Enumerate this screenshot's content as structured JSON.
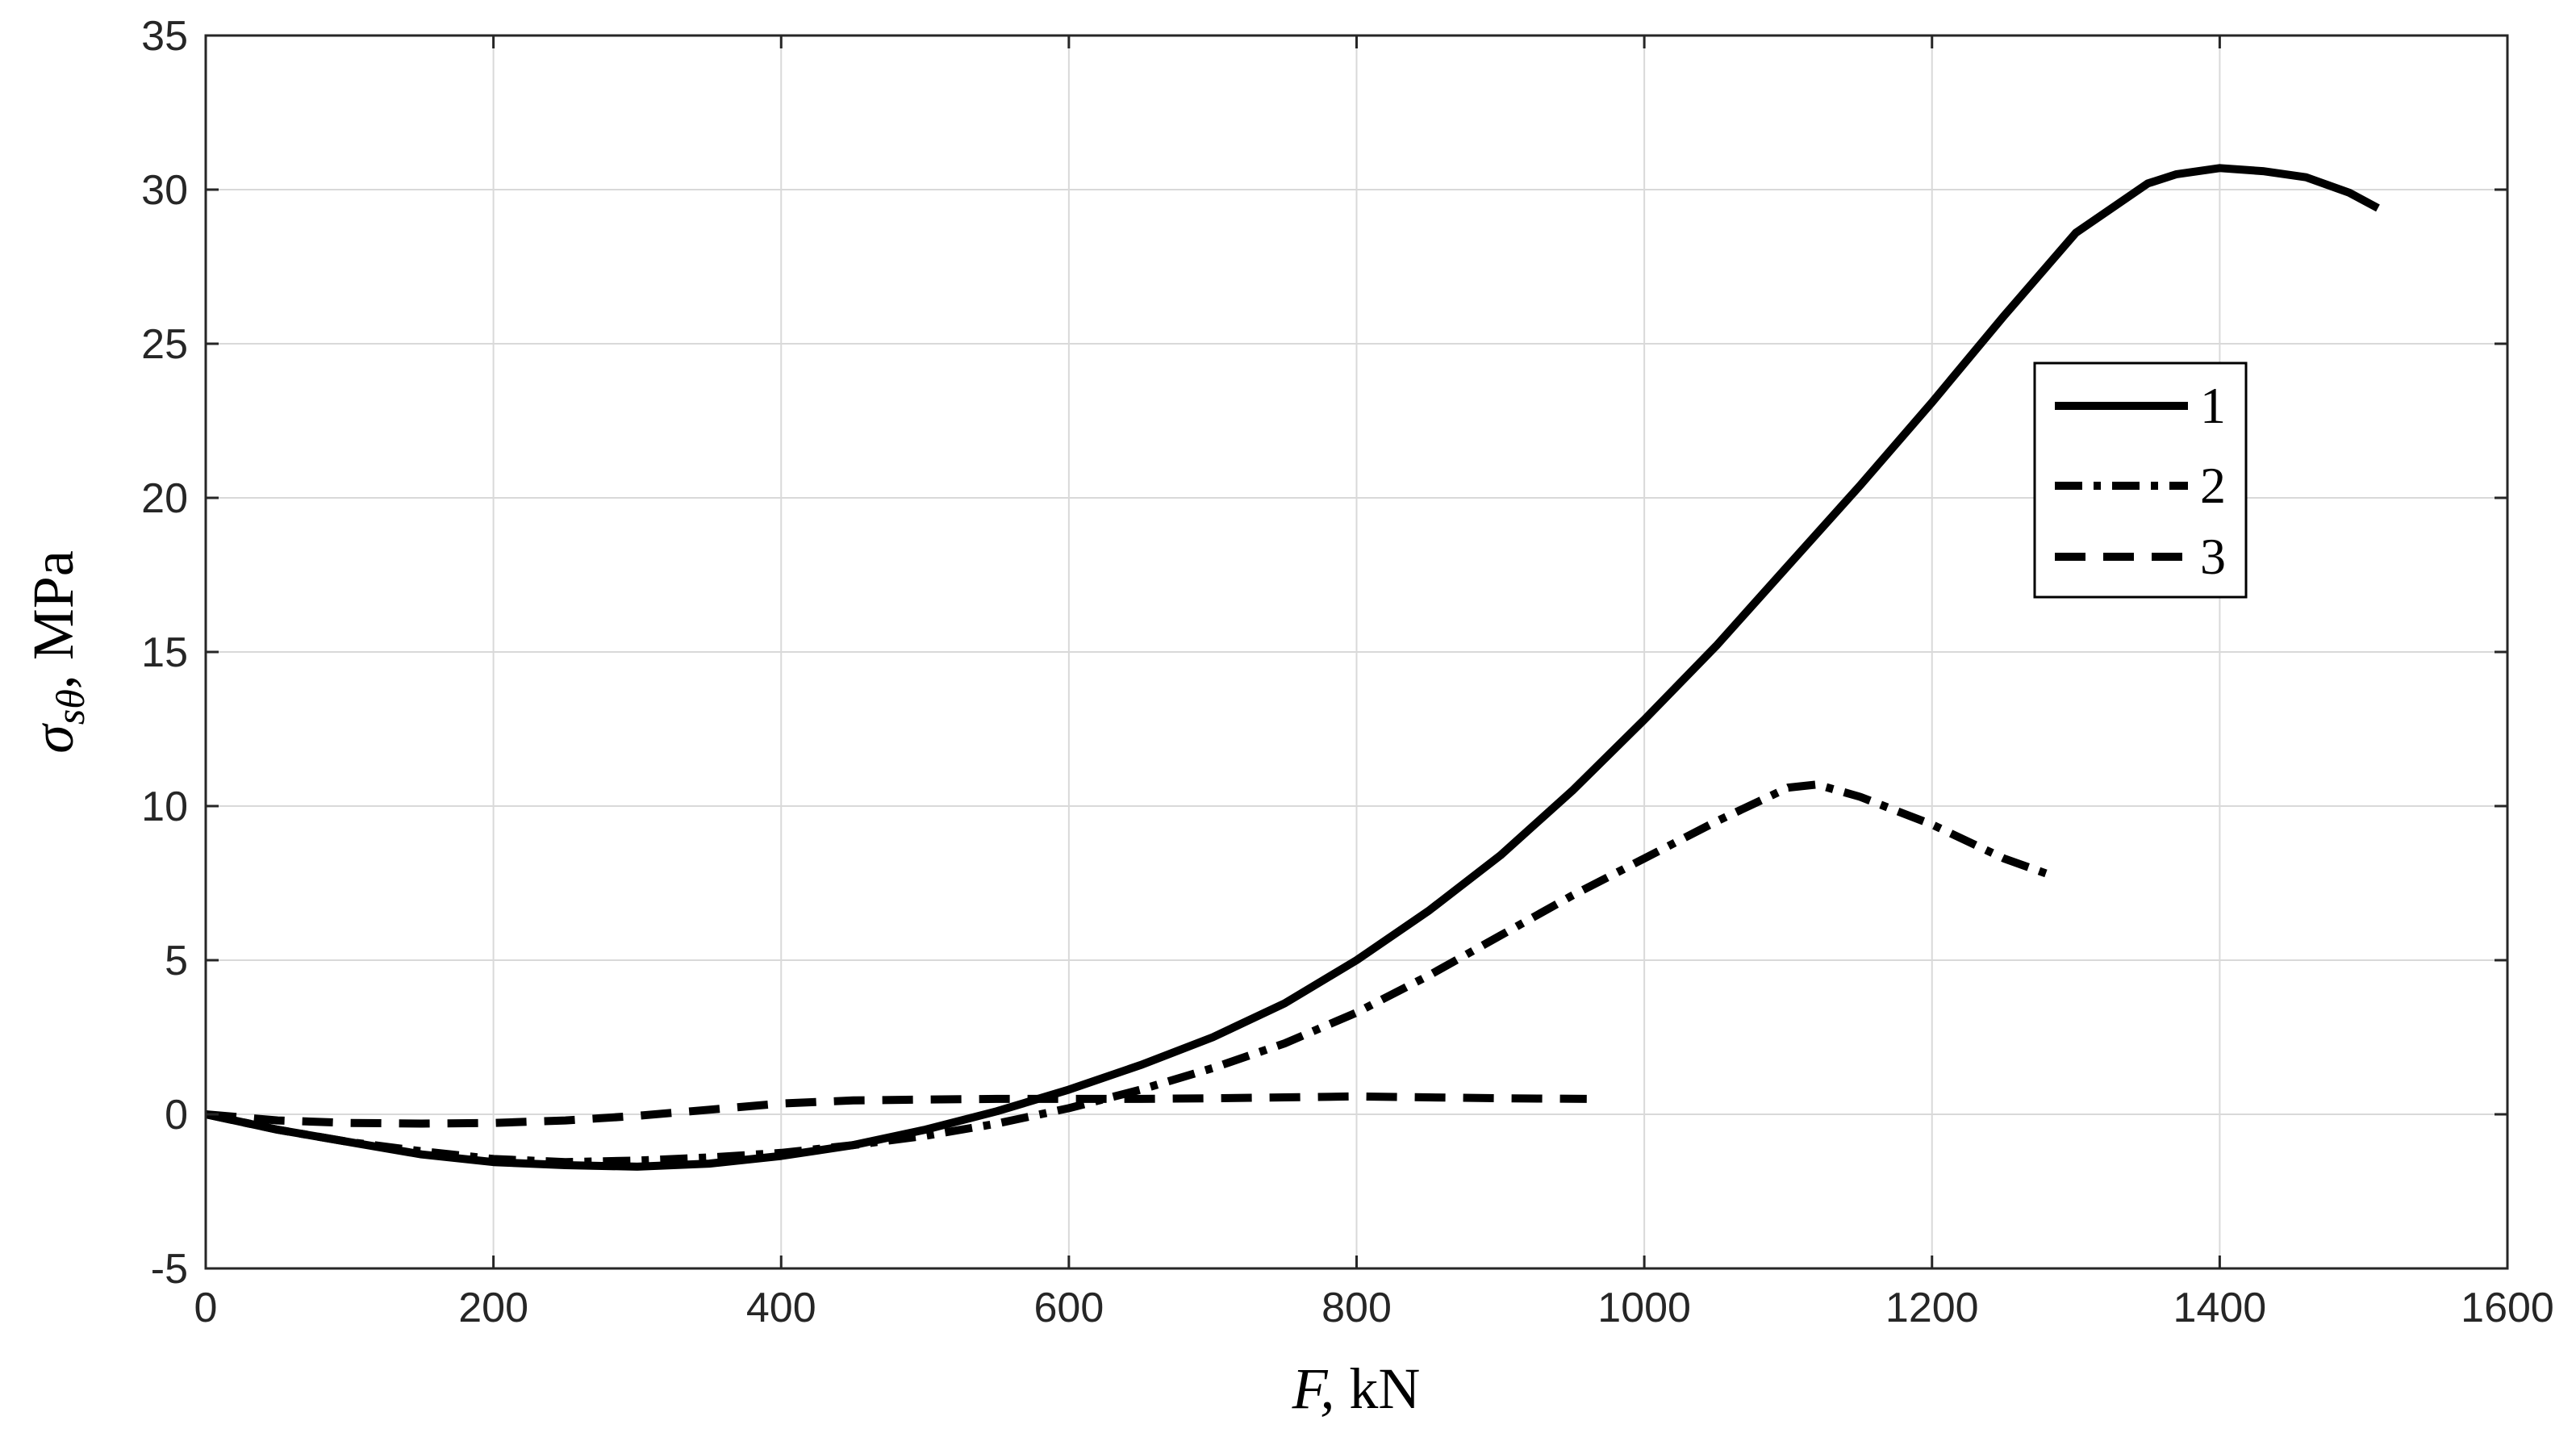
{
  "chart_data": {
    "type": "line",
    "xlabel_var": "F,",
    "xlabel_unit": " kN",
    "ylabel_var": "σ",
    "ylabel_sub": "sθ",
    "ylabel_unit": ", MPa",
    "xlim": [
      0,
      1600
    ],
    "ylim": [
      -5,
      35
    ],
    "xticks": [
      0,
      200,
      400,
      600,
      800,
      1000,
      1200,
      1400,
      1600
    ],
    "yticks": [
      -5,
      0,
      5,
      10,
      15,
      20,
      25,
      30,
      35
    ],
    "grid": true,
    "legend_position": "upper-right-inside",
    "series": [
      {
        "name": "1",
        "style": "solid",
        "x": [
          0,
          50,
          100,
          150,
          200,
          250,
          300,
          350,
          400,
          450,
          500,
          550,
          600,
          650,
          700,
          750,
          800,
          850,
          900,
          950,
          1000,
          1050,
          1100,
          1150,
          1200,
          1250,
          1300,
          1350,
          1370,
          1400,
          1430,
          1460,
          1490,
          1510
        ],
        "y": [
          0,
          -0.5,
          -0.9,
          -1.3,
          -1.55,
          -1.65,
          -1.7,
          -1.6,
          -1.35,
          -1.0,
          -0.5,
          0.1,
          0.8,
          1.6,
          2.5,
          3.6,
          5.0,
          6.6,
          8.4,
          10.5,
          12.8,
          15.2,
          17.8,
          20.4,
          23.1,
          25.9,
          28.6,
          30.2,
          30.5,
          30.7,
          30.6,
          30.4,
          29.9,
          29.4
        ]
      },
      {
        "name": "2",
        "style": "dashdot",
        "x": [
          0,
          50,
          100,
          150,
          200,
          250,
          300,
          350,
          400,
          450,
          500,
          550,
          600,
          650,
          700,
          750,
          800,
          850,
          900,
          950,
          1000,
          1050,
          1100,
          1120,
          1150,
          1200,
          1250,
          1280
        ],
        "y": [
          0,
          -0.5,
          -0.9,
          -1.2,
          -1.45,
          -1.55,
          -1.5,
          -1.4,
          -1.25,
          -1.0,
          -0.7,
          -0.3,
          0.2,
          0.8,
          1.5,
          2.3,
          3.3,
          4.5,
          5.8,
          7.1,
          8.3,
          9.5,
          10.6,
          10.7,
          10.3,
          9.4,
          8.3,
          7.8
        ]
      },
      {
        "name": "3",
        "style": "dashed",
        "x": [
          0,
          50,
          100,
          150,
          200,
          250,
          300,
          350,
          400,
          450,
          500,
          550,
          600,
          650,
          700,
          750,
          800,
          850,
          900,
          960
        ],
        "y": [
          0,
          -0.2,
          -0.28,
          -0.3,
          -0.28,
          -0.2,
          -0.05,
          0.15,
          0.35,
          0.45,
          0.48,
          0.5,
          0.5,
          0.5,
          0.52,
          0.55,
          0.58,
          0.55,
          0.52,
          0.5
        ]
      }
    ]
  }
}
